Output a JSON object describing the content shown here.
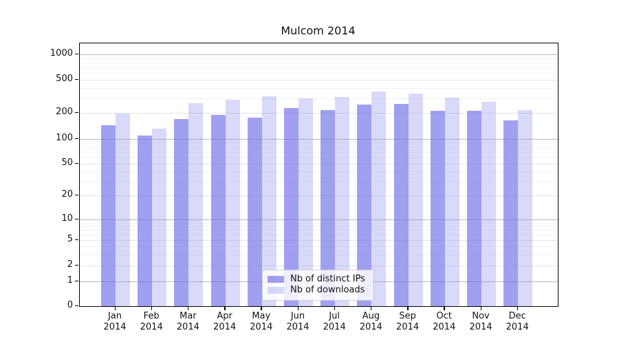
{
  "figure": {
    "title": "Mulcom 2014"
  },
  "chart_data": {
    "type": "bar",
    "title": "Mulcom 2014",
    "xlabel": "",
    "ylabel": "",
    "categories": [
      "Jan 2014",
      "Feb 2014",
      "Mar 2014",
      "Apr 2014",
      "May 2014",
      "Jun 2014",
      "Jul 2014",
      "Aug 2014",
      "Sep 2014",
      "Oct 2014",
      "Nov 2014",
      "Dec 2014"
    ],
    "series": [
      {
        "name": "Nb of distinct IPs",
        "color_hex": "#6666e6",
        "opacity": 0.62,
        "values": [
          145,
          110,
          170,
          190,
          176,
          230,
          215,
          250,
          258,
          210,
          213,
          165
        ]
      },
      {
        "name": "Nb of downloads",
        "color_hex": "#6666e6",
        "opacity": 0.25,
        "values": [
          196,
          132,
          260,
          290,
          315,
          296,
          310,
          365,
          340,
          305,
          271,
          215
        ]
      }
    ],
    "y_axis": {
      "scale": "symlog",
      "tick_labels": [
        "0",
        "1",
        "2",
        "5",
        "10",
        "20",
        "50",
        "100",
        "200",
        "500",
        "1000"
      ],
      "tick_values": [
        0,
        1,
        2,
        5,
        10,
        20,
        50,
        100,
        200,
        500,
        1000
      ],
      "minor_tick_values": [
        3,
        4,
        6,
        7,
        8,
        9,
        30,
        40,
        60,
        70,
        80,
        90,
        300,
        400,
        600,
        700,
        800,
        900
      ],
      "ylim": [
        0,
        1400
      ]
    },
    "grid": true,
    "legend_position": "lower center",
    "colors": {
      "bar_base": "#6666e6",
      "grid_decade": "#b9b9b9",
      "grid_major": "#e3e3e3",
      "grid_minor": "#f1f1f1"
    }
  }
}
